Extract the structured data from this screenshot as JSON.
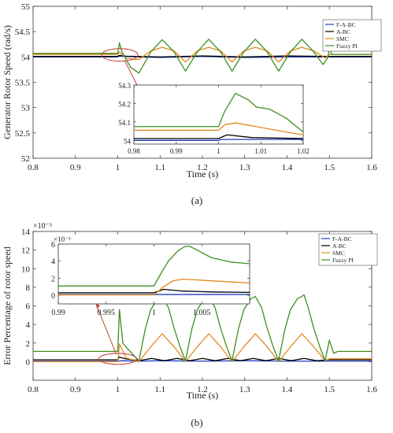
{
  "chart_data": [
    {
      "type": "line",
      "panel_label": "(a)",
      "xlabel": "Time (s)",
      "ylabel": "Generator Rotor Speed (rad/s)",
      "xlim": [
        0.8,
        1.6
      ],
      "ylim": [
        52,
        55
      ],
      "xticks": [
        0.8,
        0.9,
        1,
        1.1,
        1.2,
        1.3,
        1.4,
        1.5,
        1.6
      ],
      "yticks": [
        52,
        52.5,
        53,
        53.5,
        54,
        54.5,
        55
      ],
      "grid": false,
      "legend_position": "top-right",
      "series": [
        {
          "name": "F-A-BC",
          "color": "#1f3fbf",
          "points": [
            [
              0.8,
              54.0
            ],
            [
              1.0,
              54.0
            ],
            [
              1.003,
              54.015
            ],
            [
              1.02,
              54.01
            ],
            [
              1.05,
              54.0
            ],
            [
              1.1,
              53.99
            ],
            [
              1.2,
              54.01
            ],
            [
              1.3,
              53.99
            ],
            [
              1.4,
              54.0
            ],
            [
              1.5,
              54.0
            ],
            [
              1.6,
              54.0
            ]
          ]
        },
        {
          "name": "A-BC",
          "color": "#000000",
          "points": [
            [
              0.8,
              54.01
            ],
            [
              1.0,
              54.01
            ],
            [
              1.003,
              54.03
            ],
            [
              1.02,
              54.015
            ],
            [
              1.1,
              54.0
            ],
            [
              1.2,
              54.02
            ],
            [
              1.3,
              54.0
            ],
            [
              1.4,
              54.02
            ],
            [
              1.5,
              54.01
            ],
            [
              1.6,
              54.01
            ]
          ]
        },
        {
          "name": "SMC",
          "color": "#e08a1e",
          "points": [
            [
              0.8,
              54.05
            ],
            [
              0.95,
              54.05
            ],
            [
              1.0,
              54.05
            ],
            [
              1.004,
              54.1
            ],
            [
              1.02,
              53.97
            ],
            [
              1.05,
              53.95
            ],
            [
              1.078,
              54.12
            ],
            [
              1.105,
              54.19
            ],
            [
              1.133,
              54.12
            ],
            [
              1.16,
              53.9
            ],
            [
              1.188,
              54.12
            ],
            [
              1.215,
              54.19
            ],
            [
              1.243,
              54.12
            ],
            [
              1.27,
              53.9
            ],
            [
              1.298,
              54.12
            ],
            [
              1.325,
              54.19
            ],
            [
              1.353,
              54.12
            ],
            [
              1.38,
              53.9
            ],
            [
              1.408,
              54.12
            ],
            [
              1.435,
              54.19
            ],
            [
              1.463,
              54.12
            ],
            [
              1.49,
              53.98
            ],
            [
              1.5,
              54.05
            ],
            [
              1.6,
              54.05
            ]
          ]
        },
        {
          "name": "Fuzzy PI",
          "color": "#3f8f1f",
          "points": [
            [
              0.8,
              54.07
            ],
            [
              0.95,
              54.07
            ],
            [
              1.0,
              54.07
            ],
            [
              1.004,
              54.28
            ],
            [
              1.01,
              54.1
            ],
            [
              1.03,
              53.8
            ],
            [
              1.05,
              53.68
            ],
            [
              1.078,
              54.1
            ],
            [
              1.105,
              54.34
            ],
            [
              1.133,
              54.1
            ],
            [
              1.16,
              53.72
            ],
            [
              1.188,
              54.1
            ],
            [
              1.215,
              54.35
            ],
            [
              1.243,
              54.1
            ],
            [
              1.27,
              53.72
            ],
            [
              1.298,
              54.1
            ],
            [
              1.325,
              54.35
            ],
            [
              1.353,
              54.1
            ],
            [
              1.38,
              53.72
            ],
            [
              1.408,
              54.1
            ],
            [
              1.435,
              54.35
            ],
            [
              1.463,
              54.1
            ],
            [
              1.485,
              53.85
            ],
            [
              1.497,
              54.0
            ],
            [
              1.5,
              54.22
            ],
            [
              1.505,
              54.05
            ],
            [
              1.52,
              54.05
            ],
            [
              1.6,
              54.05
            ]
          ]
        }
      ],
      "inset": {
        "xlim": [
          0.98,
          1.02
        ],
        "ylim": [
          53.98,
          54.3
        ],
        "xticks": [
          0.98,
          0.99,
          1,
          1.01,
          1.02
        ],
        "yticks": [
          54,
          54.1,
          54.2,
          54.3
        ],
        "series": [
          {
            "name": "F-A-BC",
            "color": "#1f3fbf",
            "points": [
              [
                0.98,
                54.0
              ],
              [
                1.0,
                54.0
              ],
              [
                1.0005,
                54.005
              ],
              [
                1.02,
                54.005
              ]
            ]
          },
          {
            "name": "A-BC",
            "color": "#000000",
            "points": [
              [
                0.98,
                54.01
              ],
              [
                1.0,
                54.01
              ],
              [
                1.002,
                54.03
              ],
              [
                1.008,
                54.015
              ],
              [
                1.02,
                54.01
              ]
            ]
          },
          {
            "name": "SMC",
            "color": "#e08a1e",
            "points": [
              [
                0.98,
                54.055
              ],
              [
                1.0,
                54.055
              ],
              [
                1.0015,
                54.085
              ],
              [
                1.004,
                54.095
              ],
              [
                1.01,
                54.07
              ],
              [
                1.016,
                54.045
              ],
              [
                1.02,
                54.03
              ]
            ]
          },
          {
            "name": "Fuzzy PI",
            "color": "#3f8f1f",
            "points": [
              [
                0.98,
                54.075
              ],
              [
                1.0,
                54.075
              ],
              [
                1.0015,
                54.16
              ],
              [
                1.004,
                54.255
              ],
              [
                1.007,
                54.22
              ],
              [
                1.009,
                54.18
              ],
              [
                1.012,
                54.17
              ],
              [
                1.016,
                54.12
              ],
              [
                1.02,
                54.045
              ]
            ]
          }
        ]
      }
    },
    {
      "type": "line",
      "panel_label": "(b)",
      "xlabel": "Time (s)",
      "ylabel": "Error Percentage of rotor speed",
      "exponent_label": "×10⁻³",
      "xlim": [
        0.8,
        1.6
      ],
      "ylim": [
        -2,
        14
      ],
      "xticks": [
        0.8,
        0.9,
        1,
        1.1,
        1.2,
        1.3,
        1.4,
        1.5,
        1.6
      ],
      "yticks": [
        0,
        2,
        4,
        6,
        8,
        10,
        12,
        14
      ],
      "grid": false,
      "legend_position": "top-right",
      "series": [
        {
          "name": "F-A-BC",
          "color": "#1f3fbf",
          "points": [
            [
              0.8,
              0.05
            ],
            [
              1.0,
              0.05
            ],
            [
              1.01,
              0.1
            ],
            [
              1.05,
              0.05
            ],
            [
              1.1,
              0.1
            ],
            [
              1.2,
              0.05
            ],
            [
              1.3,
              0.1
            ],
            [
              1.4,
              0.05
            ],
            [
              1.5,
              0.05
            ],
            [
              1.6,
              0.05
            ]
          ]
        },
        {
          "name": "A-BC",
          "color": "#000000",
          "points": [
            [
              0.8,
              0.2
            ],
            [
              1.0,
              0.2
            ],
            [
              1.003,
              0.5
            ],
            [
              1.02,
              0.3
            ],
            [
              1.05,
              0.1
            ],
            [
              1.08,
              0.35
            ],
            [
              1.11,
              0.1
            ],
            [
              1.14,
              0.35
            ],
            [
              1.17,
              0.1
            ],
            [
              1.2,
              0.35
            ],
            [
              1.23,
              0.1
            ],
            [
              1.26,
              0.35
            ],
            [
              1.29,
              0.1
            ],
            [
              1.32,
              0.35
            ],
            [
              1.35,
              0.1
            ],
            [
              1.38,
              0.35
            ],
            [
              1.41,
              0.1
            ],
            [
              1.44,
              0.35
            ],
            [
              1.47,
              0.1
            ],
            [
              1.5,
              0.2
            ],
            [
              1.6,
              0.2
            ]
          ]
        },
        {
          "name": "SMC",
          "color": "#e08a1e",
          "points": [
            [
              0.8,
              0.0
            ],
            [
              1.0,
              0.0
            ],
            [
              1.004,
              1.9
            ],
            [
              1.02,
              0.4
            ],
            [
              1.05,
              0.0
            ],
            [
              1.078,
              1.6
            ],
            [
              1.105,
              3.0
            ],
            [
              1.133,
              1.6
            ],
            [
              1.16,
              0.0
            ],
            [
              1.188,
              1.6
            ],
            [
              1.215,
              3.0
            ],
            [
              1.243,
              1.6
            ],
            [
              1.27,
              0.0
            ],
            [
              1.298,
              1.6
            ],
            [
              1.325,
              3.0
            ],
            [
              1.353,
              1.6
            ],
            [
              1.38,
              0.0
            ],
            [
              1.408,
              1.6
            ],
            [
              1.435,
              3.0
            ],
            [
              1.463,
              1.6
            ],
            [
              1.49,
              0.1
            ],
            [
              1.5,
              0.3
            ],
            [
              1.6,
              0.3
            ]
          ]
        },
        {
          "name": "Fuzzy PI",
          "color": "#3f8f1f",
          "points": [
            [
              0.8,
              1.1
            ],
            [
              0.95,
              1.1
            ],
            [
              1.0,
              1.1
            ],
            [
              1.004,
              5.6
            ],
            [
              1.012,
              2.0
            ],
            [
              1.025,
              1.3
            ],
            [
              1.05,
              0.1
            ],
            [
              1.065,
              3.5
            ],
            [
              1.078,
              5.6
            ],
            [
              1.095,
              6.8
            ],
            [
              1.105,
              7.0
            ],
            [
              1.12,
              5.8
            ],
            [
              1.133,
              3.6
            ],
            [
              1.148,
              1.5
            ],
            [
              1.16,
              0.1
            ],
            [
              1.175,
              3.5
            ],
            [
              1.188,
              5.6
            ],
            [
              1.205,
              6.8
            ],
            [
              1.215,
              7.0
            ],
            [
              1.23,
              5.8
            ],
            [
              1.243,
              3.6
            ],
            [
              1.258,
              1.5
            ],
            [
              1.27,
              0.1
            ],
            [
              1.285,
              3.5
            ],
            [
              1.298,
              5.6
            ],
            [
              1.315,
              6.8
            ],
            [
              1.325,
              7.0
            ],
            [
              1.34,
              5.8
            ],
            [
              1.353,
              3.6
            ],
            [
              1.368,
              1.5
            ],
            [
              1.38,
              0.1
            ],
            [
              1.395,
              3.5
            ],
            [
              1.408,
              5.6
            ],
            [
              1.425,
              6.8
            ],
            [
              1.435,
              7.0
            ],
            [
              1.44,
              7.2
            ],
            [
              1.45,
              5.8
            ],
            [
              1.463,
              3.6
            ],
            [
              1.478,
              1.5
            ],
            [
              1.49,
              0.1
            ],
            [
              1.5,
              2.3
            ],
            [
              1.51,
              0.9
            ],
            [
              1.52,
              1.1
            ],
            [
              1.6,
              1.1
            ]
          ]
        }
      ],
      "inset": {
        "exponent_label": "×10⁻³",
        "xlim": [
          0.99,
          1.01
        ],
        "ylim": [
          -1,
          6
        ],
        "xticks": [
          0.99,
          0.995,
          1,
          1.005
        ],
        "yticks": [
          0,
          2,
          4,
          6
        ],
        "series": [
          {
            "name": "F-A-BC",
            "color": "#1f3fbf",
            "points": [
              [
                0.99,
                0.1
              ],
              [
                1.0,
                0.1
              ],
              [
                1.01,
                0.1
              ]
            ]
          },
          {
            "name": "A-BC",
            "color": "#000000",
            "points": [
              [
                0.99,
                0.3
              ],
              [
                1.0,
                0.3
              ],
              [
                1.001,
                0.7
              ],
              [
                1.003,
                0.5
              ],
              [
                1.006,
                0.4
              ],
              [
                1.01,
                0.35
              ]
            ]
          },
          {
            "name": "SMC",
            "color": "#e08a1e",
            "points": [
              [
                0.99,
                0.05
              ],
              [
                1.0,
                0.05
              ],
              [
                1.001,
                1.0
              ],
              [
                1.002,
                1.7
              ],
              [
                1.003,
                1.9
              ],
              [
                1.006,
                1.7
              ],
              [
                1.01,
                1.45
              ]
            ]
          },
          {
            "name": "Fuzzy PI",
            "color": "#3f8f1f",
            "points": [
              [
                0.99,
                1.1
              ],
              [
                1.0,
                1.1
              ],
              [
                1.0007,
                2.5
              ],
              [
                1.0015,
                4.0
              ],
              [
                1.0025,
                5.2
              ],
              [
                1.0032,
                5.7
              ],
              [
                1.0037,
                5.75
              ],
              [
                1.0045,
                5.3
              ],
              [
                1.006,
                4.4
              ],
              [
                1.008,
                3.9
              ],
              [
                1.01,
                3.7
              ]
            ]
          }
        ]
      }
    }
  ]
}
